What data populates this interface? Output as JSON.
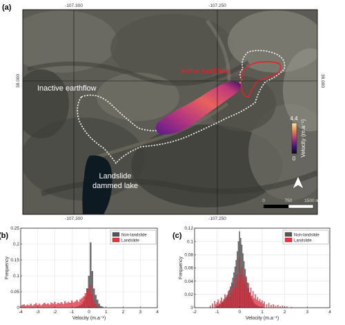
{
  "panel_a": {
    "label": "(a)",
    "coord_top": [
      "-107.300",
      "-107.250"
    ],
    "coord_bottom": [
      "-107.300",
      "-107.250"
    ],
    "coord_left": "38.000",
    "coord_right": "38.000",
    "annotations": {
      "active": "Active earthflow",
      "inactive": "Inactive earthflow",
      "lake_line1": "Landslide",
      "lake_line2": "dammed lake"
    },
    "colorbar": {
      "max_label": "4.4",
      "min_label": "0",
      "title": "Velocity (m.a⁻¹)"
    },
    "scalebar": {
      "labels": [
        "0",
        "750",
        "1500 m"
      ]
    },
    "north_arrow": "north-arrow-icon",
    "colors": {
      "active_outline": "#e8202a",
      "inactive_outline": "#ffffff",
      "active_label": "#e8202a",
      "inactive_label": "#ffffff"
    }
  },
  "chart_data": [
    {
      "panel": "(b)",
      "type": "bar",
      "xlabel": "Velocity (m.a⁻¹)",
      "ylabel": "Frequency",
      "xlim": [
        -4,
        4
      ],
      "ylim": [
        0,
        0.25
      ],
      "xticks": [
        -4,
        -3,
        -2,
        -1,
        0,
        1,
        2,
        3,
        4
      ],
      "yticks": [
        0,
        0.05,
        0.1,
        0.15,
        0.2,
        0.25
      ],
      "grid": true,
      "legend": "top-right",
      "bin_width": 0.1,
      "series": [
        {
          "name": "Non-landslide",
          "color": "#555555",
          "bins": [
            [
              -0.8,
              0.002
            ],
            [
              -0.7,
              0.003
            ],
            [
              -0.6,
              0.005
            ],
            [
              -0.5,
              0.008
            ],
            [
              -0.4,
              0.012
            ],
            [
              -0.3,
              0.02
            ],
            [
              -0.2,
              0.035
            ],
            [
              -0.1,
              0.06
            ],
            [
              0.0,
              0.1
            ],
            [
              0.1,
              0.205
            ],
            [
              0.2,
              0.115
            ],
            [
              0.3,
              0.06
            ],
            [
              0.4,
              0.04
            ],
            [
              0.5,
              0.025
            ],
            [
              0.6,
              0.012
            ],
            [
              0.7,
              0.005
            ],
            [
              0.8,
              0.003
            ]
          ]
        },
        {
          "name": "Landslide",
          "color": "#f03040",
          "bins": [
            [
              -4.0,
              0.004
            ],
            [
              -3.9,
              0.008
            ],
            [
              -3.8,
              0.01
            ],
            [
              -3.7,
              0.006
            ],
            [
              -3.6,
              0.009
            ],
            [
              -3.5,
              0.007
            ],
            [
              -3.4,
              0.012
            ],
            [
              -3.3,
              0.006
            ],
            [
              -3.2,
              0.01
            ],
            [
              -3.1,
              0.014
            ],
            [
              -3.0,
              0.008
            ],
            [
              -2.9,
              0.012
            ],
            [
              -2.8,
              0.007
            ],
            [
              -2.7,
              0.011
            ],
            [
              -2.6,
              0.015
            ],
            [
              -2.5,
              0.01
            ],
            [
              -2.4,
              0.013
            ],
            [
              -2.3,
              0.009
            ],
            [
              -2.2,
              0.016
            ],
            [
              -2.1,
              0.012
            ],
            [
              -2.0,
              0.018
            ],
            [
              -1.9,
              0.011
            ],
            [
              -1.8,
              0.015
            ],
            [
              -1.7,
              0.013
            ],
            [
              -1.6,
              0.017
            ],
            [
              -1.5,
              0.012
            ],
            [
              -1.4,
              0.02
            ],
            [
              -1.3,
              0.014
            ],
            [
              -1.2,
              0.018
            ],
            [
              -1.1,
              0.015
            ],
            [
              -1.0,
              0.022
            ],
            [
              -0.9,
              0.016
            ],
            [
              -0.8,
              0.019
            ],
            [
              -0.7,
              0.024
            ],
            [
              -0.6,
              0.018
            ],
            [
              -0.5,
              0.026
            ],
            [
              -0.4,
              0.03
            ],
            [
              -0.3,
              0.035
            ],
            [
              -0.2,
              0.045
            ],
            [
              -0.1,
              0.06
            ],
            [
              0.0,
              0.055
            ],
            [
              0.1,
              0.07
            ],
            [
              0.2,
              0.04
            ],
            [
              0.3,
              0.02
            ],
            [
              0.4,
              0.01
            ],
            [
              0.5,
              0.004
            ]
          ]
        }
      ]
    },
    {
      "panel": "(c)",
      "type": "bar",
      "xlabel": "Velocity (m.a⁻¹)",
      "ylabel": "Frequency",
      "xlim": [
        -2,
        4
      ],
      "ylim": [
        0,
        0.12
      ],
      "xticks": [
        -2,
        -1,
        0,
        1,
        2,
        3,
        4
      ],
      "yticks": [
        0,
        0.02,
        0.04,
        0.06,
        0.08,
        0.1,
        0.12
      ],
      "grid": true,
      "legend": "top-right",
      "bin_width": 0.05,
      "series": [
        {
          "name": "Non-landslide",
          "color": "#555555",
          "bins": [
            [
              -1.0,
              0.002
            ],
            [
              -0.95,
              0.003
            ],
            [
              -0.9,
              0.004
            ],
            [
              -0.85,
              0.005
            ],
            [
              -0.8,
              0.007
            ],
            [
              -0.75,
              0.009
            ],
            [
              -0.7,
              0.011
            ],
            [
              -0.65,
              0.013
            ],
            [
              -0.6,
              0.016
            ],
            [
              -0.55,
              0.019
            ],
            [
              -0.5,
              0.022
            ],
            [
              -0.45,
              0.027
            ],
            [
              -0.4,
              0.032
            ],
            [
              -0.35,
              0.038
            ],
            [
              -0.3,
              0.045
            ],
            [
              -0.25,
              0.053
            ],
            [
              -0.2,
              0.062
            ],
            [
              -0.15,
              0.072
            ],
            [
              -0.1,
              0.085
            ],
            [
              -0.05,
              0.1
            ],
            [
              0.0,
              0.115
            ],
            [
              0.05,
              0.105
            ],
            [
              0.1,
              0.095
            ],
            [
              0.15,
              0.082
            ],
            [
              0.2,
              0.07
            ],
            [
              0.25,
              0.058
            ],
            [
              0.3,
              0.047
            ],
            [
              0.35,
              0.038
            ],
            [
              0.4,
              0.03
            ],
            [
              0.45,
              0.023
            ],
            [
              0.5,
              0.017
            ],
            [
              0.55,
              0.013
            ],
            [
              0.6,
              0.01
            ],
            [
              0.65,
              0.007
            ],
            [
              0.7,
              0.005
            ],
            [
              0.75,
              0.004
            ],
            [
              0.8,
              0.003
            ],
            [
              0.85,
              0.002
            ],
            [
              0.9,
              0.002
            ],
            [
              0.95,
              0.001
            ],
            [
              1.0,
              0.001
            ]
          ]
        },
        {
          "name": "Landslide",
          "color": "#f03040",
          "bins": [
            [
              -1.3,
              0.003
            ],
            [
              -1.2,
              0.006
            ],
            [
              -1.1,
              0.01
            ],
            [
              -1.05,
              0.005
            ],
            [
              -1.0,
              0.008
            ],
            [
              -0.95,
              0.012
            ],
            [
              -0.9,
              0.006
            ],
            [
              -0.85,
              0.01
            ],
            [
              -0.8,
              0.015
            ],
            [
              -0.75,
              0.009
            ],
            [
              -0.7,
              0.013
            ],
            [
              -0.65,
              0.02
            ],
            [
              -0.6,
              0.012
            ],
            [
              -0.55,
              0.018
            ],
            [
              -0.5,
              0.025
            ],
            [
              -0.45,
              0.015
            ],
            [
              -0.4,
              0.03
            ],
            [
              -0.35,
              0.022
            ],
            [
              -0.3,
              0.035
            ],
            [
              -0.25,
              0.027
            ],
            [
              -0.2,
              0.045
            ],
            [
              -0.15,
              0.03
            ],
            [
              -0.1,
              0.05
            ],
            [
              -0.05,
              0.04
            ],
            [
              0.0,
              0.075
            ],
            [
              0.05,
              0.05
            ],
            [
              0.1,
              0.06
            ],
            [
              0.15,
              0.042
            ],
            [
              0.2,
              0.05
            ],
            [
              0.25,
              0.035
            ],
            [
              0.3,
              0.043
            ],
            [
              0.35,
              0.028
            ],
            [
              0.4,
              0.037
            ],
            [
              0.45,
              0.022
            ],
            [
              0.5,
              0.03
            ],
            [
              0.55,
              0.018
            ],
            [
              0.6,
              0.025
            ],
            [
              0.65,
              0.014
            ],
            [
              0.7,
              0.02
            ],
            [
              0.75,
              0.012
            ],
            [
              0.8,
              0.016
            ],
            [
              0.85,
              0.01
            ],
            [
              0.9,
              0.013
            ],
            [
              0.95,
              0.008
            ],
            [
              1.0,
              0.011
            ],
            [
              1.05,
              0.006
            ],
            [
              1.1,
              0.009
            ],
            [
              1.2,
              0.005
            ],
            [
              1.3,
              0.007
            ],
            [
              1.4,
              0.004
            ],
            [
              1.5,
              0.005
            ],
            [
              1.6,
              0.003
            ],
            [
              1.7,
              0.004
            ],
            [
              1.8,
              0.002
            ],
            [
              1.9,
              0.003
            ],
            [
              2.0,
              0.002
            ],
            [
              2.1,
              0.002
            ],
            [
              2.3,
              0.001
            ]
          ]
        }
      ]
    }
  ]
}
